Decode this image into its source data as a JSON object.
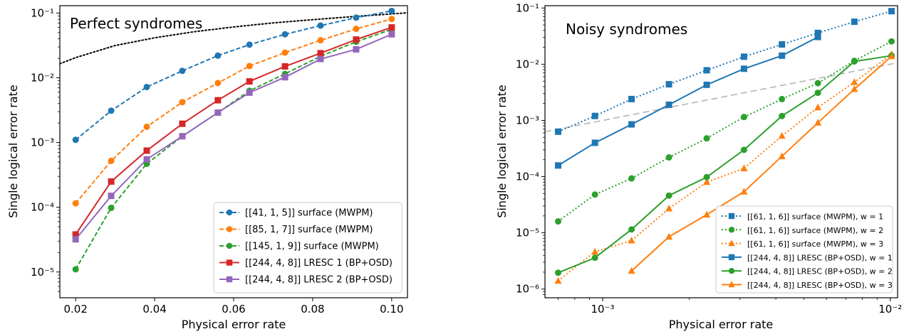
{
  "figure": {
    "panels": [
      {
        "title": "Perfect syndromes",
        "xlabel": "Physical error rate",
        "ylabel": "Single logical error rate",
        "x_ticks": [
          "0.02",
          "0.04",
          "0.06",
          "0.08",
          "0.10"
        ],
        "y_ticks": [
          "10⁻⁵",
          "10⁻⁴",
          "10⁻³",
          "10⁻²",
          "10⁻¹"
        ],
        "legend": [
          {
            "label": "[[41, 1, 5]] surface (MWPM)"
          },
          {
            "label": "[[85, 1, 7]] surface (MWPM)"
          },
          {
            "label": "[[145, 1, 9]] surface (MWPM)"
          },
          {
            "label": "[[244, 4, 8]] LRESC 1 (BP+OSD)"
          },
          {
            "label": "[[244, 4, 8]] LRESC 2 (BP+OSD)"
          }
        ]
      },
      {
        "title": "Noisy syndromes",
        "xlabel": "Physical error rate",
        "ylabel": "Single logical error rate",
        "x_ticks": [
          "10⁻³",
          "10⁻²"
        ],
        "y_ticks": [
          "10⁻⁶",
          "10⁻⁵",
          "10⁻⁴",
          "10⁻³",
          "10⁻²",
          "10⁻¹"
        ],
        "legend": [
          {
            "label": "[[61, 1, 6]] surface (MWPM), w = 1"
          },
          {
            "label": "[[61, 1, 6]] surface (MWPM), w = 2"
          },
          {
            "label": "[[61, 1, 6]] surface (MWPM), w = 3"
          },
          {
            "label": "[[244, 4, 8]] LRESC (BP+OSD), w = 1"
          },
          {
            "label": "[[244, 4, 8]] LRESC (BP+OSD), w = 2"
          },
          {
            "label": "[[244, 4, 8]] LRESC (BP+OSD), w = 3"
          }
        ]
      }
    ]
  },
  "chart_data": [
    {
      "type": "line",
      "title": "Perfect syndromes",
      "xlabel": "Physical error rate",
      "ylabel": "Single logical error rate",
      "xscale": "linear",
      "yscale": "log",
      "xlim": [
        0.016,
        0.104
      ],
      "ylim": [
        4e-06,
        0.13
      ],
      "grid": false,
      "legend_position": "bottom-right",
      "x_ticks": [
        0.02,
        0.04,
        0.06,
        0.08,
        0.1
      ],
      "y_ticks": [
        1e-05,
        0.0001,
        0.001,
        0.01,
        0.1
      ],
      "reference_lines": [
        {
          "style": "dotted",
          "color": "#000000",
          "description": "threshold curve",
          "x": [
            0.016,
            0.02,
            0.03,
            0.04,
            0.05,
            0.06,
            0.07,
            0.08,
            0.09,
            0.1,
            0.104
          ],
          "y": [
            0.0165,
            0.0205,
            0.0315,
            0.0415,
            0.0515,
            0.061,
            0.0705,
            0.079,
            0.088,
            0.097,
            0.101
          ]
        }
      ],
      "series": [
        {
          "name": "[[41, 1, 5]] surface (MWPM)",
          "color": "#1f77b4",
          "line": "dashed",
          "marker": "circle",
          "x": [
            0.02,
            0.029,
            0.038,
            0.047,
            0.056,
            0.064,
            0.073,
            0.082,
            0.091,
            0.1
          ],
          "y": [
            0.0011,
            0.0031,
            0.0072,
            0.0128,
            0.022,
            0.0325,
            0.047,
            0.064,
            0.085,
            0.108
          ]
        },
        {
          "name": "[[85, 1, 7]] surface (MWPM)",
          "color": "#ff7f0e",
          "line": "dashed",
          "marker": "circle",
          "x": [
            0.02,
            0.029,
            0.038,
            0.047,
            0.056,
            0.064,
            0.073,
            0.082,
            0.091,
            0.1
          ],
          "y": [
            0.000115,
            0.00052,
            0.00175,
            0.0042,
            0.0083,
            0.0152,
            0.0245,
            0.038,
            0.057,
            0.081
          ]
        },
        {
          "name": "[[145, 1, 9]] surface (MWPM)",
          "color": "#2ca02c",
          "line": "dashed",
          "marker": "circle",
          "x": [
            0.02,
            0.029,
            0.038,
            0.047,
            0.056,
            0.064,
            0.073,
            0.082,
            0.091,
            0.1
          ],
          "y": [
            1.1e-05,
            9.8e-05,
            0.00047,
            0.00125,
            0.0029,
            0.0063,
            0.0115,
            0.0215,
            0.036,
            0.056
          ]
        },
        {
          "name": "[[244, 4, 8]] LRESC 1 (BP+OSD)",
          "color": "#d62728",
          "line": "solid",
          "marker": "square",
          "x": [
            0.02,
            0.029,
            0.038,
            0.047,
            0.056,
            0.064,
            0.073,
            0.082,
            0.091,
            0.1
          ],
          "y": [
            3.8e-05,
            0.00025,
            0.00075,
            0.00195,
            0.0045,
            0.0088,
            0.015,
            0.024,
            0.039,
            0.06
          ]
        },
        {
          "name": "[[244, 4, 8]] LRESC 2 (BP+OSD)",
          "color": "#9467bd",
          "line": "solid",
          "marker": "square",
          "x": [
            0.02,
            0.029,
            0.038,
            0.047,
            0.056,
            0.064,
            0.073,
            0.082,
            0.091,
            0.1
          ],
          "y": [
            3.2e-05,
            0.00015,
            0.00055,
            0.00125,
            0.0029,
            0.0059,
            0.0102,
            0.0195,
            0.0275,
            0.047
          ]
        }
      ]
    },
    {
      "type": "line",
      "title": "Noisy syndromes",
      "xlabel": "Physical error rate",
      "ylabel": "Single logical error rate",
      "xscale": "log",
      "yscale": "log",
      "xlim": [
        0.00063,
        0.0106
      ],
      "ylim": [
        7e-07,
        0.11
      ],
      "grid": false,
      "legend_position": "bottom-right",
      "x_ticks": [
        0.001,
        0.01
      ],
      "y_ticks": [
        1e-06,
        1e-05,
        0.0001,
        0.001,
        0.01,
        0.1
      ],
      "reference_lines": [
        {
          "style": "dashed",
          "color": "#bbbbbb",
          "description": "break-even line",
          "x": [
            0.00063,
            0.0106
          ],
          "y": [
            0.00063,
            0.0106
          ]
        }
      ],
      "series": [
        {
          "name": "[[61, 1, 6]] surface (MWPM), w = 1",
          "color": "#1f77b4",
          "line": "dotted",
          "marker": "square",
          "x": [
            0.0007,
            0.00094,
            0.00126,
            0.0017,
            0.0023,
            0.0031,
            0.0042,
            0.0056,
            0.0075,
            0.0101
          ],
          "y": [
            0.00063,
            0.0012,
            0.0024,
            0.0044,
            0.0078,
            0.0136,
            0.0225,
            0.036,
            0.057,
            0.088
          ]
        },
        {
          "name": "[[61, 1, 6]] surface (MWPM), w = 2",
          "color": "#2ca02c",
          "line": "dotted",
          "marker": "circle",
          "x": [
            0.0007,
            0.00094,
            0.00126,
            0.0017,
            0.0023,
            0.0031,
            0.0042,
            0.0056,
            0.0075,
            0.0101
          ],
          "y": [
            1.6e-05,
            4.8e-05,
            9.3e-05,
            0.00022,
            0.00048,
            0.00115,
            0.0024,
            0.0046,
            0.0115,
            0.0255
          ]
        },
        {
          "name": "[[61, 1, 6]] surface (MWPM), w = 3",
          "color": "#ff7f0e",
          "line": "dotted",
          "marker": "triangle",
          "x": [
            0.0007,
            0.00094,
            0.00126,
            0.0017,
            0.0023,
            0.0031,
            0.0042,
            0.0056,
            0.0075,
            0.0101
          ],
          "y": [
            1.4e-06,
            4.6e-06,
            7.3e-06,
            2.7e-05,
            8e-05,
            0.00014,
            0.00053,
            0.0017,
            0.0048,
            0.015
          ]
        },
        {
          "name": "[[244, 4, 8]] LRESC (BP+OSD), w = 1",
          "color": "#1f77b4",
          "line": "solid",
          "marker": "square",
          "x": [
            0.0007,
            0.00094,
            0.00126,
            0.0017,
            0.0023,
            0.0031,
            0.0042,
            0.0056
          ],
          "y": [
            0.000158,
            0.0004,
            0.00085,
            0.0019,
            0.0043,
            0.0083,
            0.0142,
            0.0305
          ]
        },
        {
          "name": "[[244, 4, 8]] LRESC (BP+OSD), w = 2",
          "color": "#2ca02c",
          "line": "solid",
          "marker": "circle",
          "x": [
            0.0007,
            0.00094,
            0.00126,
            0.0017,
            0.0023,
            0.0031,
            0.0042,
            0.0056,
            0.0075,
            0.0101
          ],
          "y": [
            1.95e-06,
            3.6e-06,
            1.15e-05,
            4.6e-05,
            9.8e-05,
            0.0003,
            0.0012,
            0.0031,
            0.0112,
            0.0142
          ]
        },
        {
          "name": "[[244, 4, 8]] LRESC (BP+OSD), w = 3",
          "color": "#ff7f0e",
          "line": "solid",
          "marker": "triangle",
          "x": [
            0.00126,
            0.0017,
            0.0023,
            0.0031,
            0.0042,
            0.0056,
            0.0075,
            0.0101
          ],
          "y": [
            2.1e-06,
            8.5e-06,
            2.1e-05,
            5.4e-05,
            0.00023,
            0.00091,
            0.0036,
            0.0138
          ]
        }
      ]
    }
  ]
}
